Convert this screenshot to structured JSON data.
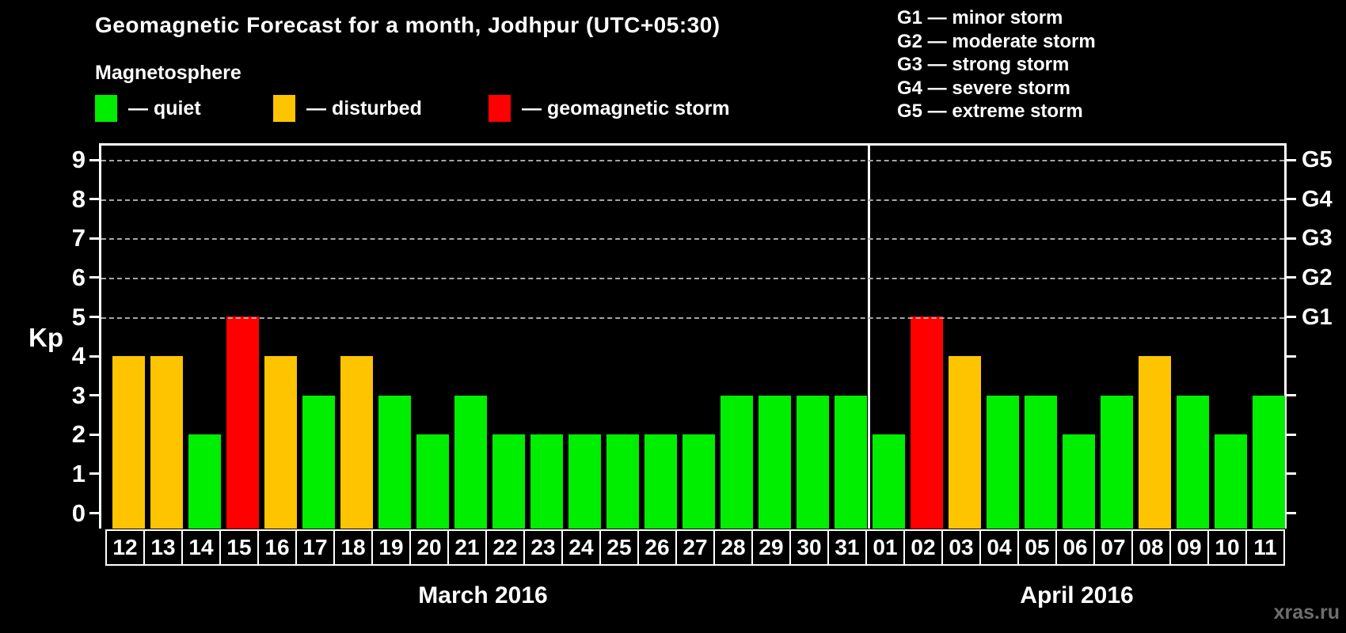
{
  "title": "Geomagnetic Forecast for a month, Jodhpur (UTC+05:30)",
  "subtitle": "Magnetosphere",
  "watermark": "xras.ru",
  "legend": {
    "items": [
      {
        "key": "quiet",
        "label": "— quiet",
        "color": "#00ee00"
      },
      {
        "key": "disturbed",
        "label": "— disturbed",
        "color": "#ffc400"
      },
      {
        "key": "storm",
        "label": "— geomagnetic storm",
        "color": "#fe0000"
      }
    ]
  },
  "storm_scale_legend": [
    "G1 — minor storm",
    "G2 — moderate storm",
    "G3 — strong storm",
    "G4 — severe storm",
    "G5 — extreme storm"
  ],
  "chart_data": {
    "type": "bar",
    "title": "Geomagnetic Forecast for a month, Jodhpur (UTC+05:30)",
    "xlabel": "",
    "ylabel": "Kp",
    "ylim": [
      0,
      9.4
    ],
    "grid": "dashed horizontal at Kp 5-9 only",
    "yticks": [
      0,
      1,
      2,
      3,
      4,
      5,
      6,
      7,
      8,
      9
    ],
    "gridlines_kp": [
      5,
      6,
      7,
      8,
      9
    ],
    "g_levels": [
      {
        "kp": 5,
        "label": "G1"
      },
      {
        "kp": 6,
        "label": "G2"
      },
      {
        "kp": 7,
        "label": "G3"
      },
      {
        "kp": 8,
        "label": "G4"
      },
      {
        "kp": 9,
        "label": "G5"
      }
    ],
    "colors": {
      "quiet": "#00ee00",
      "disturbed": "#ffc400",
      "storm": "#fe0000"
    },
    "months": [
      {
        "label": "March 2016",
        "days": [
          {
            "day": "12",
            "kp": 4,
            "status": "disturbed"
          },
          {
            "day": "13",
            "kp": 4,
            "status": "disturbed"
          },
          {
            "day": "14",
            "kp": 2,
            "status": "quiet"
          },
          {
            "day": "15",
            "kp": 5,
            "status": "storm"
          },
          {
            "day": "16",
            "kp": 4,
            "status": "disturbed"
          },
          {
            "day": "17",
            "kp": 3,
            "status": "quiet"
          },
          {
            "day": "18",
            "kp": 4,
            "status": "disturbed"
          },
          {
            "day": "19",
            "kp": 3,
            "status": "quiet"
          },
          {
            "day": "20",
            "kp": 2,
            "status": "quiet"
          },
          {
            "day": "21",
            "kp": 3,
            "status": "quiet"
          },
          {
            "day": "22",
            "kp": 2,
            "status": "quiet"
          },
          {
            "day": "23",
            "kp": 2,
            "status": "quiet"
          },
          {
            "day": "24",
            "kp": 2,
            "status": "quiet"
          },
          {
            "day": "25",
            "kp": 2,
            "status": "quiet"
          },
          {
            "day": "26",
            "kp": 2,
            "status": "quiet"
          },
          {
            "day": "27",
            "kp": 2,
            "status": "quiet"
          },
          {
            "day": "28",
            "kp": 3,
            "status": "quiet"
          },
          {
            "day": "29",
            "kp": 3,
            "status": "quiet"
          },
          {
            "day": "30",
            "kp": 3,
            "status": "quiet"
          },
          {
            "day": "31",
            "kp": 3,
            "status": "quiet"
          }
        ]
      },
      {
        "label": "April 2016",
        "days": [
          {
            "day": "01",
            "kp": 2,
            "status": "quiet"
          },
          {
            "day": "02",
            "kp": 5,
            "status": "storm"
          },
          {
            "day": "03",
            "kp": 4,
            "status": "disturbed"
          },
          {
            "day": "04",
            "kp": 3,
            "status": "quiet"
          },
          {
            "day": "05",
            "kp": 3,
            "status": "quiet"
          },
          {
            "day": "06",
            "kp": 2,
            "status": "quiet"
          },
          {
            "day": "07",
            "kp": 3,
            "status": "quiet"
          },
          {
            "day": "08",
            "kp": 4,
            "status": "disturbed"
          },
          {
            "day": "09",
            "kp": 3,
            "status": "quiet"
          },
          {
            "day": "10",
            "kp": 2,
            "status": "quiet"
          },
          {
            "day": "11",
            "kp": 3,
            "status": "quiet"
          }
        ]
      }
    ]
  }
}
